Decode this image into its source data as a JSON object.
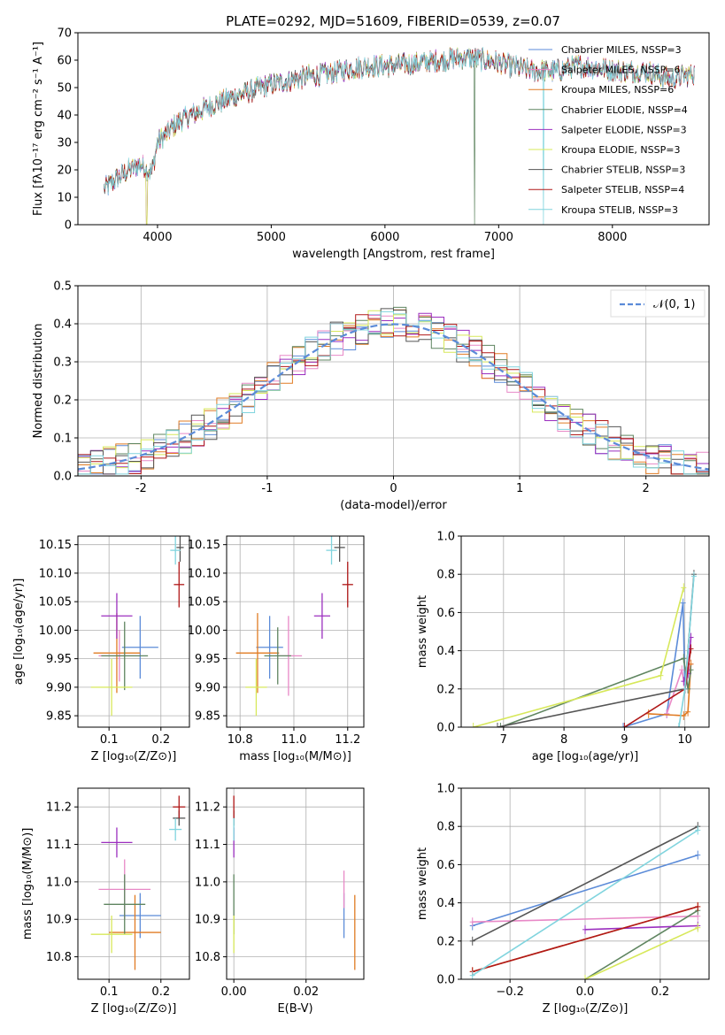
{
  "colors": [
    "#5b8bd8",
    "#e889c7",
    "#e07b23",
    "#5f8560",
    "#9b2fbf",
    "#d7e85a",
    "#555555",
    "#b01818",
    "#80d4de"
  ],
  "panels": {
    "spectrum": {
      "title": "PLATE=0292, MJD=51609, FIBERID=0539, z=0.07",
      "xlabel": "wavelength [Angstrom, rest frame]",
      "ylabel": "Flux [fλ10⁻¹⁷ erg cm⁻² s⁻¹ A⁻¹]",
      "xlim": [
        3300,
        8850
      ],
      "ylim": [
        0,
        70
      ],
      "xticks": [
        4000,
        5000,
        6000,
        7000,
        8000
      ],
      "yticks": [
        0,
        10,
        20,
        30,
        40,
        50,
        60,
        70
      ],
      "legend": [
        "Chabrier MILES, NSSP=3",
        "Salpeter MILES, NSSP=6",
        "Kroupa MILES, NSSP=6",
        "Chabrier ELODIE, NSSP=4",
        "Salpeter ELODIE, NSSP=3",
        "Kroupa ELODIE, NSSP=3",
        "Chabrier STELIB, NSSP=3",
        "Salpeter STELIB, NSSP=4",
        "Kroupa STELIB, NSSP=3"
      ]
    },
    "hist": {
      "xlabel": "(data-model)/error",
      "ylabel": "Normed distribution",
      "xlim": [
        -2.5,
        2.5
      ],
      "ylim": [
        0,
        0.5
      ],
      "xticks": [
        -2,
        -1,
        0,
        1,
        2
      ],
      "yticks": [
        0.0,
        0.1,
        0.2,
        0.3,
        0.4,
        0.5
      ],
      "legend": "𝒩(0, 1)"
    },
    "z_age": {
      "xlabel": "Z [log₁₀(Z/Z⊙)]",
      "ylabel": "age  [log₁₀(age/yr)]",
      "xlim": [
        0.04,
        0.255
      ],
      "ylim": [
        9.83,
        10.165
      ],
      "xticks": [
        0.1,
        0.2
      ],
      "yticks": [
        9.85,
        9.9,
        9.95,
        10.0,
        10.05,
        10.1,
        10.15
      ]
    },
    "mass_age": {
      "xlabel": "mass [log₁₀(M/M⊙)]",
      "xlim": [
        10.75,
        11.26
      ],
      "ylim": [
        9.83,
        10.165
      ],
      "xticks": [
        10.8,
        11.0,
        11.2
      ],
      "yticks": [
        9.85,
        9.9,
        9.95,
        10.0,
        10.05,
        10.1,
        10.15
      ]
    },
    "age_weight": {
      "xlabel": "age  [log₁₀(age/yr)]",
      "ylabel": "mass weight",
      "xlim": [
        6.3,
        10.4
      ],
      "ylim": [
        0,
        1.0
      ],
      "xticks": [
        7,
        8,
        9,
        10
      ],
      "yticks": [
        0.0,
        0.2,
        0.4,
        0.6,
        0.8,
        1.0
      ]
    },
    "z_mass": {
      "xlabel": "Z [log₁₀(Z/Z⊙)]",
      "ylabel": "mass [log₁₀(M/M⊙)]",
      "xlim": [
        0.04,
        0.255
      ],
      "ylim": [
        10.74,
        11.25
      ],
      "xticks": [
        0.1,
        0.2
      ],
      "yticks": [
        10.8,
        10.9,
        11.0,
        11.1,
        11.2
      ]
    },
    "ebv_mass": {
      "xlabel": "E(B-V)",
      "xlim": [
        -0.002,
        0.036
      ],
      "ylim": [
        10.74,
        11.25
      ],
      "xticks": [
        0.0,
        0.02
      ],
      "yticks": [
        10.8,
        10.9,
        11.0,
        11.1,
        11.2
      ]
    },
    "z_weight": {
      "xlabel": "Z [log₁₀(Z/Z⊙)]",
      "ylabel": "mass weight",
      "xlim": [
        -0.33,
        0.33
      ],
      "ylim": [
        0,
        1.0
      ],
      "xticks": [
        -0.2,
        0.0,
        0.2
      ],
      "yticks": [
        0.0,
        0.2,
        0.4,
        0.6,
        0.8,
        1.0
      ]
    }
  },
  "chart_data": [
    {
      "type": "line",
      "title": "PLATE=0292, MJD=51609, FIBERID=0539, z=0.07",
      "xlabel": "wavelength [Angstrom, rest frame]",
      "ylabel": "Flux [fλ10⁻¹⁷ erg cm⁻² s⁻¹ A⁻¹]",
      "xlim": [
        3300,
        8850
      ],
      "ylim": [
        0,
        70
      ],
      "continuum_x": [
        3530,
        3650,
        3750,
        3850,
        3950,
        4000,
        4100,
        4200,
        4300,
        4500,
        4700,
        4900,
        5100,
        5300,
        5500,
        5700,
        5900,
        6100,
        6300,
        6500,
        6700,
        6900,
        7100,
        7300,
        7500,
        7700,
        7900,
        8100,
        8300,
        8500,
        8700
      ],
      "continuum_y": [
        13,
        17,
        20,
        22,
        19,
        30,
        34,
        38,
        40,
        44,
        47,
        50,
        52,
        54,
        55,
        57,
        58,
        58,
        59,
        60,
        61,
        60,
        58,
        56,
        56,
        58,
        57,
        56,
        56,
        53,
        55
      ],
      "legend": "upper right"
    },
    {
      "type": "bar",
      "xlabel": "(data-model)/error",
      "ylabel": "Normed distribution",
      "xlim": [
        -2.5,
        2.5
      ],
      "ylim": [
        0,
        0.5
      ],
      "bin_width": 0.1,
      "reference": "𝒩(0, 1)"
    },
    {
      "type": "scatter",
      "xlabel": "Z [log₁₀(Z/Z⊙)]",
      "ylabel": "age  [log₁₀(age/yr)]",
      "series": [
        {
          "name": "Chabrier MILES",
          "x": 0.16,
          "y": 9.97,
          "xerr": 0.035,
          "yerr": 0.055
        },
        {
          "name": "Salpeter MILES",
          "x": 0.12,
          "y": 9.955,
          "xerr": 0.04,
          "yerr": 0.045
        },
        {
          "name": "Kroupa MILES",
          "x": 0.115,
          "y": 9.96,
          "xerr": 0.045,
          "yerr": 0.07
        },
        {
          "name": "Chabrier ELODIE",
          "x": 0.13,
          "y": 9.955,
          "xerr": 0.045,
          "yerr": 0.06
        },
        {
          "name": "Salpeter ELODIE",
          "x": 0.115,
          "y": 10.025,
          "xerr": 0.03,
          "yerr": 0.04
        },
        {
          "name": "Kroupa ELODIE",
          "x": 0.105,
          "y": 9.9,
          "xerr": 0.04,
          "yerr": 0.05
        },
        {
          "name": "Chabrier STELIB",
          "x": 0.237,
          "y": 10.145,
          "xerr": 0.007,
          "yerr": 0.025
        },
        {
          "name": "Salpeter STELIB",
          "x": 0.235,
          "y": 10.08,
          "xerr": 0.01,
          "yerr": 0.04
        },
        {
          "name": "Kroupa STELIB",
          "x": 0.228,
          "y": 10.14,
          "xerr": 0.01,
          "yerr": 0.025
        }
      ]
    },
    {
      "type": "scatter",
      "xlabel": "mass [log₁₀(M/M⊙)]",
      "series": [
        {
          "name": "Chabrier MILES",
          "x": 10.91,
          "y": 9.97,
          "xerr": 0.05,
          "yerr": 0.055
        },
        {
          "name": "Salpeter MILES",
          "x": 10.98,
          "y": 9.955,
          "xerr": 0.05,
          "yerr": 0.07
        },
        {
          "name": "Kroupa MILES",
          "x": 10.865,
          "y": 9.96,
          "xerr": 0.08,
          "yerr": 0.07
        },
        {
          "name": "Chabrier ELODIE",
          "x": 10.94,
          "y": 9.955,
          "xerr": 0.05,
          "yerr": 0.05
        },
        {
          "name": "Salpeter ELODIE",
          "x": 11.105,
          "y": 10.025,
          "xerr": 0.03,
          "yerr": 0.04
        },
        {
          "name": "Kroupa ELODIE",
          "x": 10.86,
          "y": 9.9,
          "xerr": 0.04,
          "yerr": 0.05
        },
        {
          "name": "Chabrier STELIB",
          "x": 11.17,
          "y": 10.145,
          "xerr": 0.02,
          "yerr": 0.025
        },
        {
          "name": "Salpeter STELIB",
          "x": 11.2,
          "y": 10.08,
          "xerr": 0.02,
          "yerr": 0.04
        },
        {
          "name": "Kroupa STELIB",
          "x": 11.14,
          "y": 10.14,
          "xerr": 0.02,
          "yerr": 0.025
        }
      ]
    },
    {
      "type": "line",
      "xlabel": "age  [log₁₀(age/yr)]",
      "ylabel": "mass weight",
      "series": [
        {
          "name": "Chabrier MILES",
          "x": [
            8.98,
            9.7,
            9.97,
            10.0
          ],
          "y": [
            0.0,
            0.07,
            0.65,
            0.2
          ]
        },
        {
          "name": "Salpeter MILES",
          "x": [
            9.7,
            9.95,
            10.0,
            10.1
          ],
          "y": [
            0.07,
            0.3,
            0.2,
            0.33
          ]
        },
        {
          "name": "Kroupa MILES",
          "x": [
            9.4,
            9.98,
            10.05,
            10.1
          ],
          "y": [
            0.07,
            0.06,
            0.08,
            0.33
          ]
        },
        {
          "name": "Chabrier ELODIE",
          "x": [
            6.95,
            9.98,
            10.05,
            10.1
          ],
          "y": [
            0.0,
            0.36,
            0.2,
            0.3
          ]
        },
        {
          "name": "Salpeter ELODIE",
          "x": [
            9.98,
            10.05,
            10.1
          ],
          "y": [
            0.24,
            0.28,
            0.47
          ]
        },
        {
          "name": "Kroupa ELODIE",
          "x": [
            6.5,
            9.6,
            9.98
          ],
          "y": [
            0.0,
            0.27,
            0.73
          ]
        },
        {
          "name": "Chabrier STELIB",
          "x": [
            6.9,
            10.0,
            10.15
          ],
          "y": [
            0.0,
            0.2,
            0.8
          ]
        },
        {
          "name": "Salpeter STELIB",
          "x": [
            9.0,
            10.0,
            10.1
          ],
          "y": [
            0.0,
            0.2,
            0.41
          ]
        },
        {
          "name": "Kroupa STELIB",
          "x": [
            9.9,
            10.0,
            10.15
          ],
          "y": [
            0.0,
            0.2,
            0.79
          ]
        }
      ]
    },
    {
      "type": "scatter",
      "xlabel": "Z [log₁₀(Z/Z⊙)]",
      "ylabel": "mass [log₁₀(M/M⊙)]",
      "series": [
        {
          "name": "Chabrier MILES",
          "x": 0.16,
          "y": 10.91,
          "xerr": 0.04,
          "yerr": 0.06
        },
        {
          "name": "Salpeter MILES",
          "x": 0.13,
          "y": 10.98,
          "xerr": 0.05,
          "yerr": 0.08
        },
        {
          "name": "Kroupa MILES",
          "x": 0.15,
          "y": 10.865,
          "xerr": 0.05,
          "yerr": 0.1
        },
        {
          "name": "Chabrier ELODIE",
          "x": 0.13,
          "y": 10.94,
          "xerr": 0.04,
          "yerr": 0.08
        },
        {
          "name": "Salpeter ELODIE",
          "x": 0.115,
          "y": 11.105,
          "xerr": 0.03,
          "yerr": 0.04
        },
        {
          "name": "Kroupa ELODIE",
          "x": 0.105,
          "y": 10.86,
          "xerr": 0.04,
          "yerr": 0.05
        },
        {
          "name": "Chabrier STELIB",
          "x": 0.235,
          "y": 11.17,
          "xerr": 0.012,
          "yerr": 0.02
        },
        {
          "name": "Salpeter STELIB",
          "x": 0.235,
          "y": 11.2,
          "xerr": 0.012,
          "yerr": 0.03
        },
        {
          "name": "Kroupa STELIB",
          "x": 0.228,
          "y": 11.14,
          "xerr": 0.012,
          "yerr": 0.03
        }
      ]
    },
    {
      "type": "scatter",
      "xlabel": "E(B-V)",
      "series": [
        {
          "name": "Chabrier MILES",
          "x": 0.0305,
          "y": 10.91,
          "yerr": 0.06
        },
        {
          "name": "Salpeter MILES",
          "x": 0.0305,
          "y": 10.98,
          "yerr": 0.05
        },
        {
          "name": "Kroupa MILES",
          "x": 0.0335,
          "y": 10.865,
          "yerr": 0.1
        },
        {
          "name": "Chabrier ELODIE",
          "x": 0.0,
          "y": 10.94,
          "yerr": 0.08
        },
        {
          "name": "Salpeter ELODIE",
          "x": 0.0,
          "y": 11.105,
          "yerr": 0.04
        },
        {
          "name": "Kroupa ELODIE",
          "x": 0.0,
          "y": 10.86,
          "yerr": 0.05
        },
        {
          "name": "Chabrier STELIB",
          "x": 0.0,
          "y": 11.17,
          "yerr": 0.02
        },
        {
          "name": "Salpeter STELIB",
          "x": 0.0,
          "y": 11.2,
          "yerr": 0.03
        },
        {
          "name": "Kroupa STELIB",
          "x": 0.0,
          "y": 11.14,
          "yerr": 0.03
        }
      ]
    },
    {
      "type": "line",
      "xlabel": "Z [log₁₀(Z/Z⊙)]",
      "ylabel": "mass weight",
      "series": [
        {
          "name": "Chabrier MILES",
          "x": [
            -0.3,
            0.3
          ],
          "y": [
            0.28,
            0.65
          ]
        },
        {
          "name": "Salpeter MILES",
          "x": [
            -0.3,
            0.3
          ],
          "y": [
            0.3,
            0.33
          ]
        },
        {
          "name": "Kroupa MILES",
          "x": [
            -0.3,
            0.3
          ],
          "y": [
            0.04,
            0.38
          ]
        },
        {
          "name": "Chabrier ELODIE",
          "x": [
            0.0,
            0.3
          ],
          "y": [
            0.0,
            0.36
          ]
        },
        {
          "name": "Salpeter ELODIE",
          "x": [
            0.0,
            0.3
          ],
          "y": [
            0.26,
            0.28
          ]
        },
        {
          "name": "Kroupa ELODIE",
          "x": [
            0.0,
            0.3
          ],
          "y": [
            0.0,
            0.27
          ]
        },
        {
          "name": "Chabrier STELIB",
          "x": [
            -0.3,
            0.3
          ],
          "y": [
            0.2,
            0.8
          ]
        },
        {
          "name": "Salpeter STELIB",
          "x": [
            -0.3,
            0.3
          ],
          "y": [
            0.04,
            0.38
          ]
        },
        {
          "name": "Kroupa STELIB",
          "x": [
            -0.3,
            0.3
          ],
          "y": [
            0.02,
            0.78
          ]
        }
      ]
    }
  ]
}
